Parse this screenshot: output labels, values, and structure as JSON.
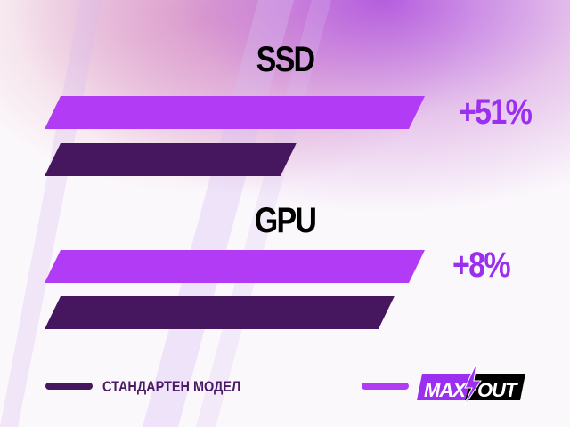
{
  "chart_data": {
    "type": "bar",
    "orientation": "horizontal",
    "categories": [
      "SSD",
      "GPU"
    ],
    "series": [
      {
        "name": "MAX OUT",
        "color": "#b23cf5"
      },
      {
        "name": "СТАНДАРТЕН МОДЕЛ",
        "color": "#46175f"
      }
    ],
    "improvements": [
      {
        "category": "SSD",
        "label": "+51%",
        "value": 51
      },
      {
        "category": "GPU",
        "label": "+8%",
        "value": 8
      }
    ],
    "legend_position": "bottom",
    "grid": false
  },
  "legend": {
    "standard_label": "СТАНДАРТЕН МОДЕЛ",
    "logo_text": "MAX OUT"
  }
}
